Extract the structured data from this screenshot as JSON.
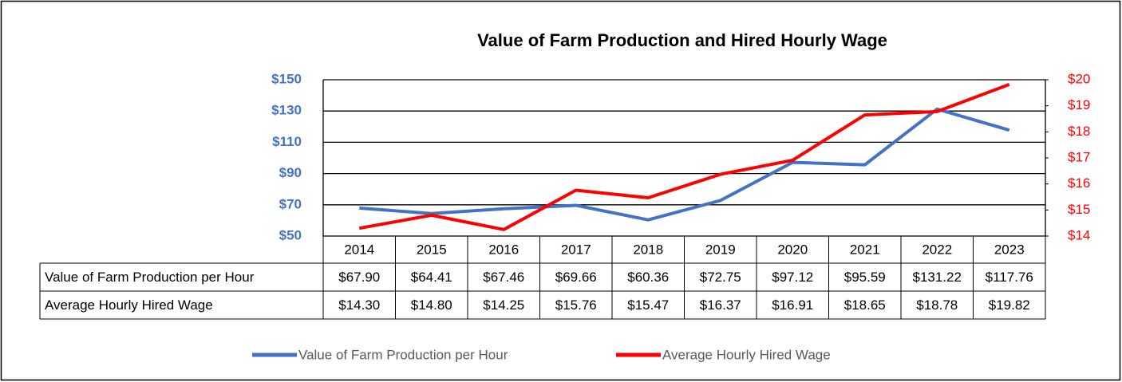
{
  "chart_data": {
    "type": "line",
    "title": "Value of Farm Production and Hired Hourly Wage",
    "categories": [
      "2014",
      "2015",
      "2016",
      "2017",
      "2018",
      "2019",
      "2020",
      "2021",
      "2022",
      "2023"
    ],
    "series": [
      {
        "name": "Value of Farm Production per Hour",
        "color": "#4472c4",
        "axis": "y",
        "values": [
          67.9,
          64.41,
          67.46,
          69.66,
          60.36,
          72.75,
          97.12,
          95.59,
          131.22,
          117.76
        ],
        "value_labels": [
          "$67.90",
          "$64.41",
          "$67.46",
          "$69.66",
          "$60.36",
          "$72.75",
          "$97.12",
          "$95.59",
          "$131.22",
          "$117.76"
        ]
      },
      {
        "name": "Average Hourly Hired Wage",
        "color": "#ff0000",
        "axis": "y2",
        "values": [
          14.3,
          14.8,
          14.25,
          15.76,
          15.47,
          16.37,
          16.91,
          18.65,
          18.78,
          19.82
        ],
        "value_labels": [
          "$14.30",
          "$14.80",
          "$14.25",
          "$15.76",
          "$15.47",
          "$16.37",
          "$16.91",
          "$18.65",
          "$18.78",
          "$19.82"
        ]
      }
    ],
    "ylim": [
      50,
      150
    ],
    "yticks": [
      {
        "value": 50,
        "label": "$50"
      },
      {
        "value": 70,
        "label": "$70"
      },
      {
        "value": 90,
        "label": "$90"
      },
      {
        "value": 110,
        "label": "$110"
      },
      {
        "value": 130,
        "label": "$130"
      },
      {
        "value": 150,
        "label": "$150"
      }
    ],
    "y2lim": [
      14,
      20
    ],
    "y2ticks": [
      {
        "value": 14,
        "label": "$14"
      },
      {
        "value": 15,
        "label": "$15"
      },
      {
        "value": 16,
        "label": "$16"
      },
      {
        "value": 17,
        "label": "$17"
      },
      {
        "value": 18,
        "label": "$18"
      },
      {
        "value": 19,
        "label": "$19"
      },
      {
        "value": 20,
        "label": "$20"
      }
    ],
    "grid": true,
    "legend": "bottom"
  }
}
